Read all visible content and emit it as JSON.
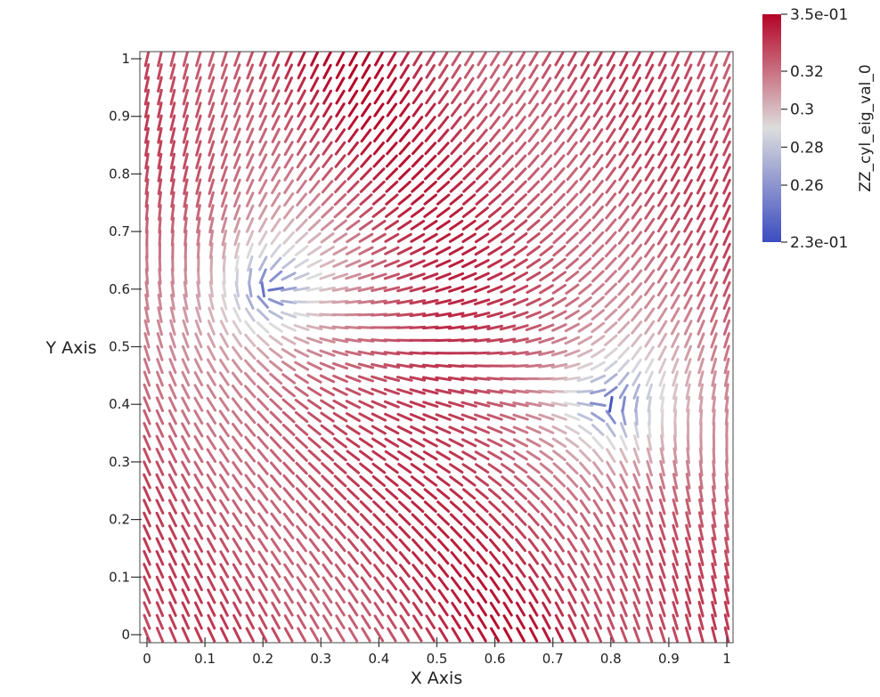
{
  "chart_data": {
    "type": "glyph_field",
    "title": "",
    "xlabel": "X Axis",
    "ylabel": "Y Axis",
    "xlim": [
      0,
      1
    ],
    "ylim": [
      0,
      1
    ],
    "x_ticks": [
      "0",
      "0.1",
      "0.2",
      "0.3",
      "0.4",
      "0.5",
      "0.6",
      "0.7",
      "0.8",
      "0.9",
      "1"
    ],
    "y_ticks": [
      "0",
      "0.1",
      "0.2",
      "0.3",
      "0.4",
      "0.5",
      "0.6",
      "0.7",
      "0.8",
      "0.9",
      "1"
    ],
    "grid": false,
    "colorbar": {
      "title": "ZZ_cyl_eig_val_0",
      "range": [
        0.23,
        0.35
      ],
      "tick_labels": [
        "3.5e-01",
        "0.32",
        "0.3",
        "0.28",
        "0.26",
        "2.3e-01"
      ],
      "tick_values": [
        0.35,
        0.32,
        0.3,
        0.28,
        0.26,
        0.23
      ],
      "colormap": "cool-to-warm",
      "colors": [
        "#3b4cc0",
        "#dddddd",
        "#b40426"
      ],
      "placement": "top-right"
    },
    "singularities": [
      {
        "x": 0.21,
        "y": 0.6,
        "value": 0.23
      },
      {
        "x": 0.8,
        "y": 0.4,
        "value": 0.23
      }
    ],
    "grid_resolution": 45
  }
}
